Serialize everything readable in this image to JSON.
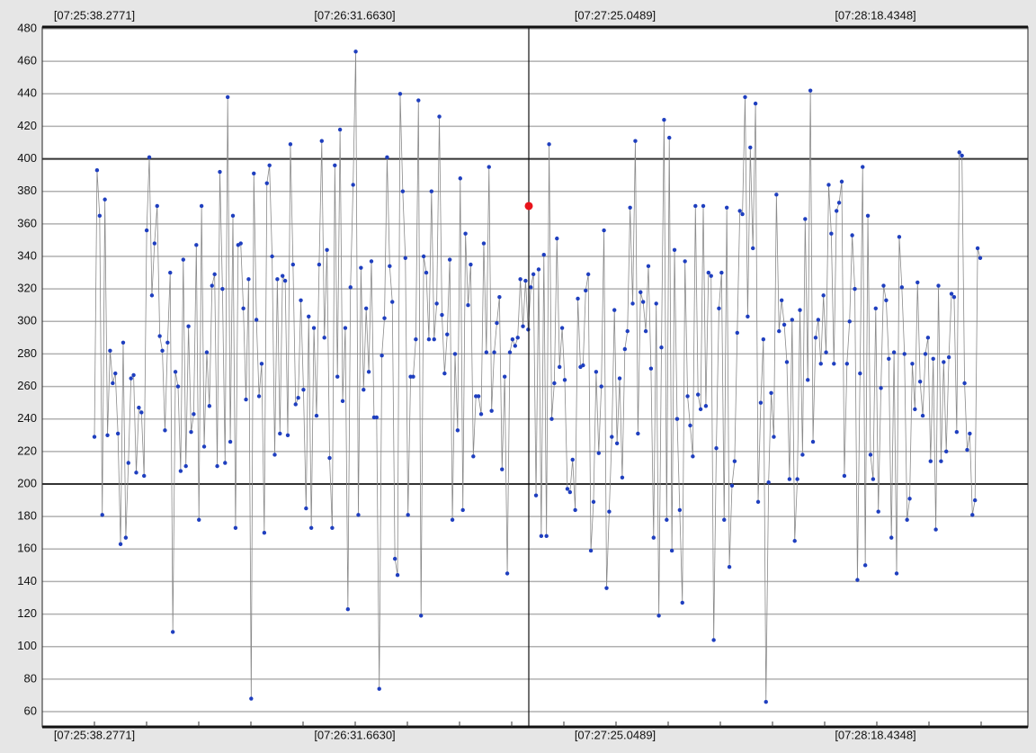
{
  "chart_data": {
    "type": "line",
    "x_axis_labels": [
      "[07:25:38.2771]",
      "[07:26:31.6630]",
      "[07:27:25.0489]",
      "[07:28:18.4348]"
    ],
    "values": [
      229,
      393,
      365,
      181,
      375,
      230,
      282,
      262,
      268,
      231,
      163,
      287,
      167,
      213,
      265,
      267,
      207,
      247,
      244,
      205,
      356,
      401,
      316,
      348,
      371,
      291,
      282,
      233,
      287,
      330,
      109,
      269,
      260,
      208,
      338,
      211,
      297,
      232,
      243,
      347,
      178,
      371,
      223,
      281,
      248,
      322,
      329,
      211,
      392,
      320,
      213,
      438,
      226,
      365,
      173,
      347,
      348,
      308,
      252,
      326,
      68,
      391,
      301,
      254,
      274,
      170,
      385,
      396,
      340,
      218,
      326,
      231,
      328,
      325,
      230,
      409,
      335,
      249,
      253,
      313,
      258,
      185,
      303,
      173,
      296,
      242,
      335,
      411,
      290,
      344,
      216,
      173,
      396,
      266,
      418,
      251,
      296,
      123,
      321,
      384,
      466,
      181,
      333,
      258,
      308,
      269,
      337,
      241,
      241,
      74,
      279,
      302,
      401,
      334,
      312,
      154,
      144,
      440,
      380,
      339,
      181,
      266,
      266,
      289,
      436,
      119,
      340,
      330,
      289,
      380,
      289,
      311,
      426,
      304,
      268,
      292,
      338,
      178,
      280,
      233,
      388,
      184,
      354,
      310,
      335,
      217,
      254,
      254,
      243,
      348,
      281,
      395,
      245,
      281,
      299,
      315,
      209,
      266,
      145,
      281,
      289,
      285,
      290,
      326,
      297,
      325,
      295,
      321,
      329,
      193,
      332,
      168,
      341,
      168,
      409,
      240,
      262,
      351,
      272,
      296,
      264,
      197,
      195,
      215,
      184,
      314,
      272,
      273,
      319,
      329,
      159,
      189,
      269,
      219,
      260,
      356,
      136,
      183,
      229,
      307,
      225,
      265,
      204,
      283,
      294,
      370,
      311,
      411,
      231,
      318,
      312,
      294,
      334,
      271,
      167,
      311,
      119,
      284,
      424,
      178,
      413,
      159,
      344,
      240,
      184,
      127,
      337,
      254,
      236,
      217,
      371,
      255,
      246,
      371,
      248,
      330,
      328,
      104,
      222,
      308,
      330,
      178,
      370,
      149,
      199,
      214,
      293,
      368,
      366,
      438,
      303,
      407,
      345,
      434,
      189,
      250,
      289,
      66,
      201,
      256,
      229,
      378,
      294,
      313,
      298,
      275,
      203,
      301,
      165,
      203,
      307,
      218,
      363,
      264,
      442,
      226,
      290,
      301,
      274,
      316,
      281,
      384,
      354,
      274,
      368,
      373,
      386,
      205,
      274,
      300,
      353,
      320,
      141,
      268,
      395,
      150,
      365,
      218,
      203,
      308,
      183,
      259,
      322,
      313,
      277,
      167,
      281,
      145,
      352,
      321,
      280,
      178,
      191,
      274,
      246,
      324,
      263,
      242,
      280,
      290,
      214,
      277,
      172,
      322,
      214,
      275,
      220,
      278,
      317,
      315,
      232,
      404,
      402,
      262,
      221,
      231,
      181,
      190,
      345,
      339
    ],
    "color": "#1f3fbf",
    "line_color": "#8a8a8a",
    "marker_value": 371,
    "marker_color": "#e8141b",
    "ylim": [
      60,
      480
    ],
    "yticks": [
      60,
      80,
      100,
      120,
      140,
      160,
      180,
      200,
      220,
      240,
      260,
      280,
      300,
      320,
      340,
      360,
      380,
      400,
      420,
      440,
      460,
      480
    ],
    "grid": true,
    "major_gridlines": [
      200,
      400
    ]
  }
}
